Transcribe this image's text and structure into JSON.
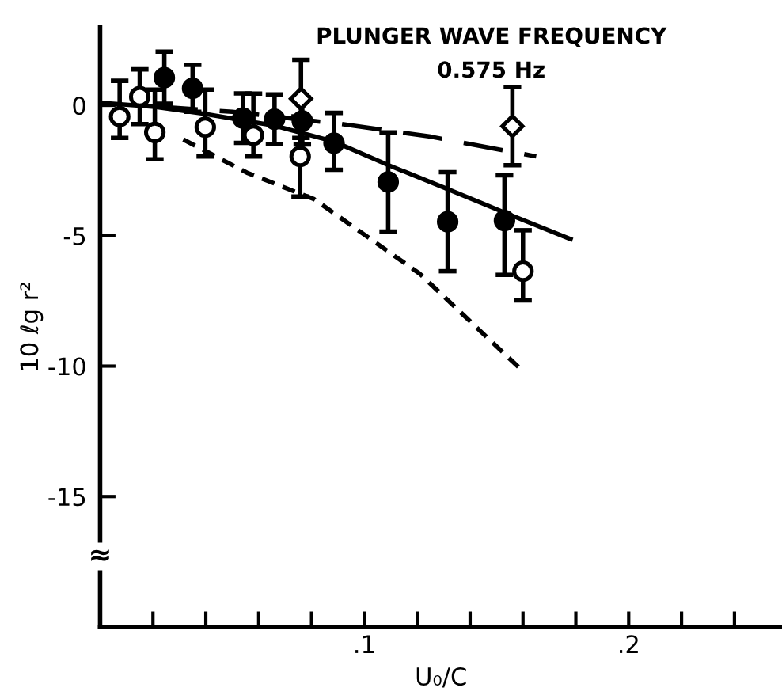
{
  "chart_data": {
    "type": "scatter",
    "title": "PLUNGER WAVE FREQUENCY",
    "subtitle": "0.575 Hz",
    "xlabel": "U₀/C",
    "ylabel": "10 ℓg r²",
    "xlim": [
      0,
      0.258
    ],
    "ylim": [
      -20,
      3
    ],
    "xticks": [
      {
        "value": 0.02,
        "label": null
      },
      {
        "value": 0.04,
        "label": null
      },
      {
        "value": 0.06,
        "label": null
      },
      {
        "value": 0.08,
        "label": null
      },
      {
        "value": 0.1,
        "label": ".1"
      },
      {
        "value": 0.12,
        "label": null
      },
      {
        "value": 0.14,
        "label": null
      },
      {
        "value": 0.16,
        "label": null
      },
      {
        "value": 0.18,
        "label": null
      },
      {
        "value": 0.2,
        "label": ".2"
      },
      {
        "value": 0.22,
        "label": null
      },
      {
        "value": 0.24,
        "label": null
      }
    ],
    "yticks": [
      0,
      -5,
      -10,
      -15
    ],
    "annotations": [
      {
        "text": "≈",
        "x": 0,
        "y": -17.3
      }
    ],
    "grid": false,
    "legend": false,
    "series": [
      {
        "marker": "circle",
        "color": "#000000",
        "x": [
          0.0243,
          0.035,
          0.054,
          0.066,
          0.0765,
          0.0885,
          0.109,
          0.1315,
          0.153
        ],
        "values": [
          1.06,
          0.65,
          -0.49,
          -0.53,
          -0.6,
          -1.45,
          -2.94,
          -4.46,
          -4.42
        ],
        "errors": [
          1.0,
          0.9,
          0.95,
          0.95,
          0.9,
          [
            -2.47,
            -0.29
          ],
          1.9,
          1.9,
          [
            -6.5,
            -2.68
          ]
        ]
      },
      {
        "marker": "circle",
        "color": "#ffffff",
        "x": [
          0.0074,
          0.015,
          0.0207,
          0.0398,
          0.058,
          0.0757,
          0.16
        ],
        "values": [
          -0.43,
          0.33,
          -1.04,
          -0.84,
          -1.15,
          -1.96,
          -6.36
        ],
        "errors": [
          [
            -1.25,
            0.94
          ],
          1.05,
          [
            -2.07,
            0.6
          ],
          [
            -1.96,
            0.6
          ],
          [
            -1.96,
            0.45
          ],
          1.54,
          [
            -7.48,
            -4.79
          ]
        ]
      },
      {
        "marker": "diamond",
        "color": "#ffffff",
        "x": [
          0.076,
          0.156
        ],
        "values": [
          0.25,
          -0.8
        ],
        "errors": [
          1.5,
          1.5
        ]
      },
      {
        "type": "line",
        "line_style": "solid",
        "color": "#000000",
        "x": [
          0.0,
          0.0207,
          0.0398,
          0.066,
          0.0885,
          0.109,
          0.1315,
          0.153,
          0.178
        ],
        "values": [
          0.1,
          -0.06,
          -0.33,
          -0.78,
          -1.39,
          -2.29,
          -3.21,
          -4.11,
          -5.13
        ]
      },
      {
        "type": "line",
        "line_style": "dashed",
        "color": "#000000",
        "x": [
          0.022,
          0.05,
          0.09,
          0.125,
          0.165
        ],
        "values": [
          -0.05,
          -0.25,
          -0.7,
          -1.2,
          -1.96
        ]
      },
      {
        "type": "line",
        "line_style": "dotted",
        "color": "#000000",
        "x": [
          0.0315,
          0.0555,
          0.081,
          0.121,
          0.16
        ],
        "values": [
          -1.31,
          -2.58,
          -3.6,
          -6.46,
          -10.2
        ]
      }
    ]
  }
}
